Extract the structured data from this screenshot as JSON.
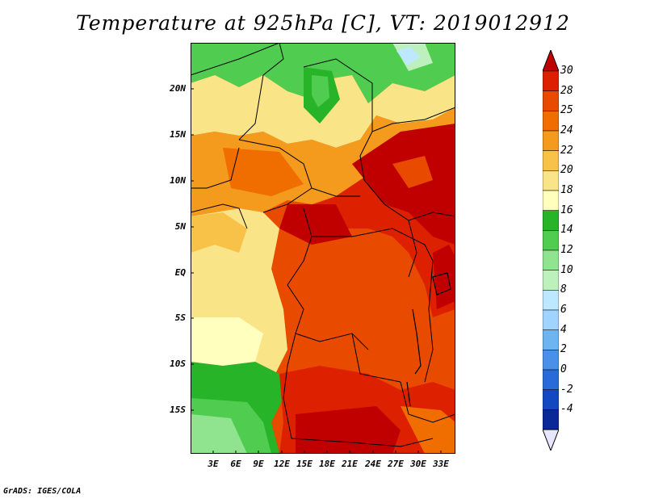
{
  "title": "Temperature at 925hPa [C], VT: 2019012912",
  "latitude_labels": [
    "20N",
    "15N",
    "10N",
    "5N",
    "EQ",
    "5S",
    "10S",
    "15S"
  ],
  "longitude_labels": [
    "3E",
    "6E",
    "9E",
    "12E",
    "15E",
    "18E",
    "21E",
    "24E",
    "27E",
    "30E",
    "33E"
  ],
  "colorbar": {
    "labels": [
      "30",
      "28",
      "25",
      "24",
      "22",
      "20",
      "18",
      "16",
      "14",
      "12",
      "10",
      "8",
      "6",
      "4",
      "2",
      "0",
      "-2",
      "-4"
    ],
    "colors": [
      "#c00000",
      "#dd2000",
      "#e84a00",
      "#f06e00",
      "#f49a1c",
      "#f8c248",
      "#fae488",
      "#ffffbe",
      "#28b428",
      "#50cc50",
      "#90e490",
      "#bef0be",
      "#bee8ff",
      "#a0d4ff",
      "#6eb4f0",
      "#4a90e8",
      "#2a6ad8",
      "#1448c0",
      "#0a2898",
      "#00006e"
    ],
    "top_arrow_color": "#c00000",
    "bottom_arrow_color": "#e6e6ff"
  },
  "footer": "GrADS: IGES/COLA"
}
